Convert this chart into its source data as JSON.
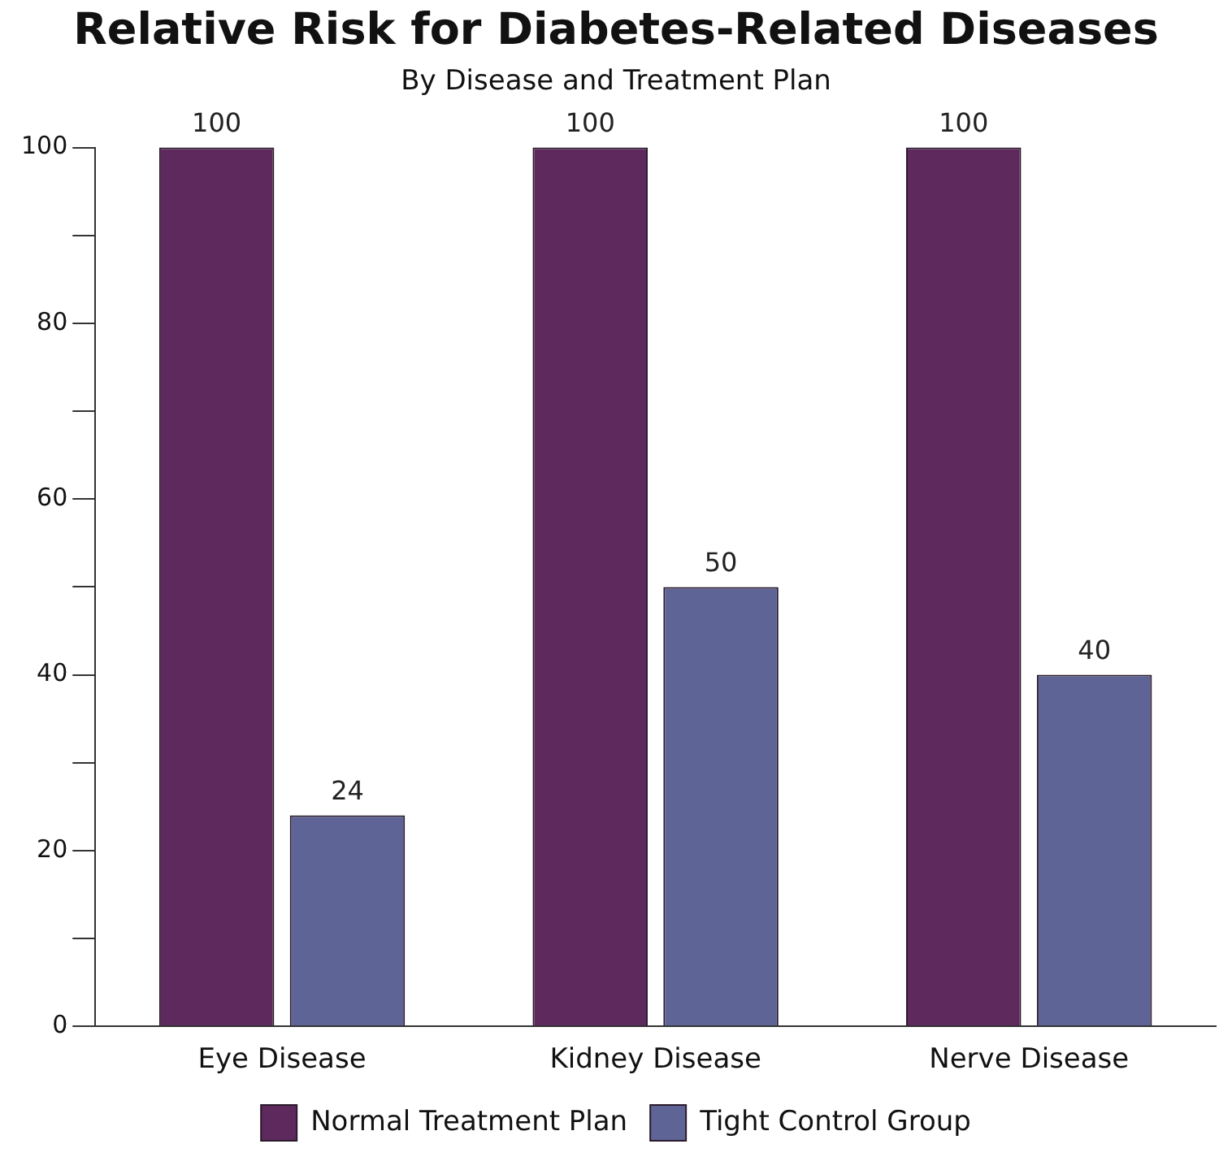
{
  "chart_data": {
    "type": "bar",
    "title": "Relative Risk for Diabetes-Related Diseases",
    "subtitle": "By Disease and Treatment Plan",
    "categories": [
      "Eye Disease",
      "Kidney Disease",
      "Nerve Disease"
    ],
    "series": [
      {
        "name": "Normal Treatment Plan",
        "color": "#5e2a5e",
        "values": [
          100,
          100,
          100
        ]
      },
      {
        "name": "Tight Control Group",
        "color": "#5f6496",
        "values": [
          24,
          50,
          40
        ]
      }
    ],
    "ylim": [
      0,
      100
    ],
    "yticks": [
      0,
      {
        "value": 10,
        "label": null
      },
      20,
      {
        "value": 30,
        "label": null
      },
      40,
      {
        "value": 50,
        "label": null
      },
      60,
      {
        "value": 70,
        "label": null
      },
      80,
      {
        "value": 90,
        "label": null
      },
      100
    ],
    "grid": false,
    "legend": "bottom",
    "data_labels": true
  }
}
